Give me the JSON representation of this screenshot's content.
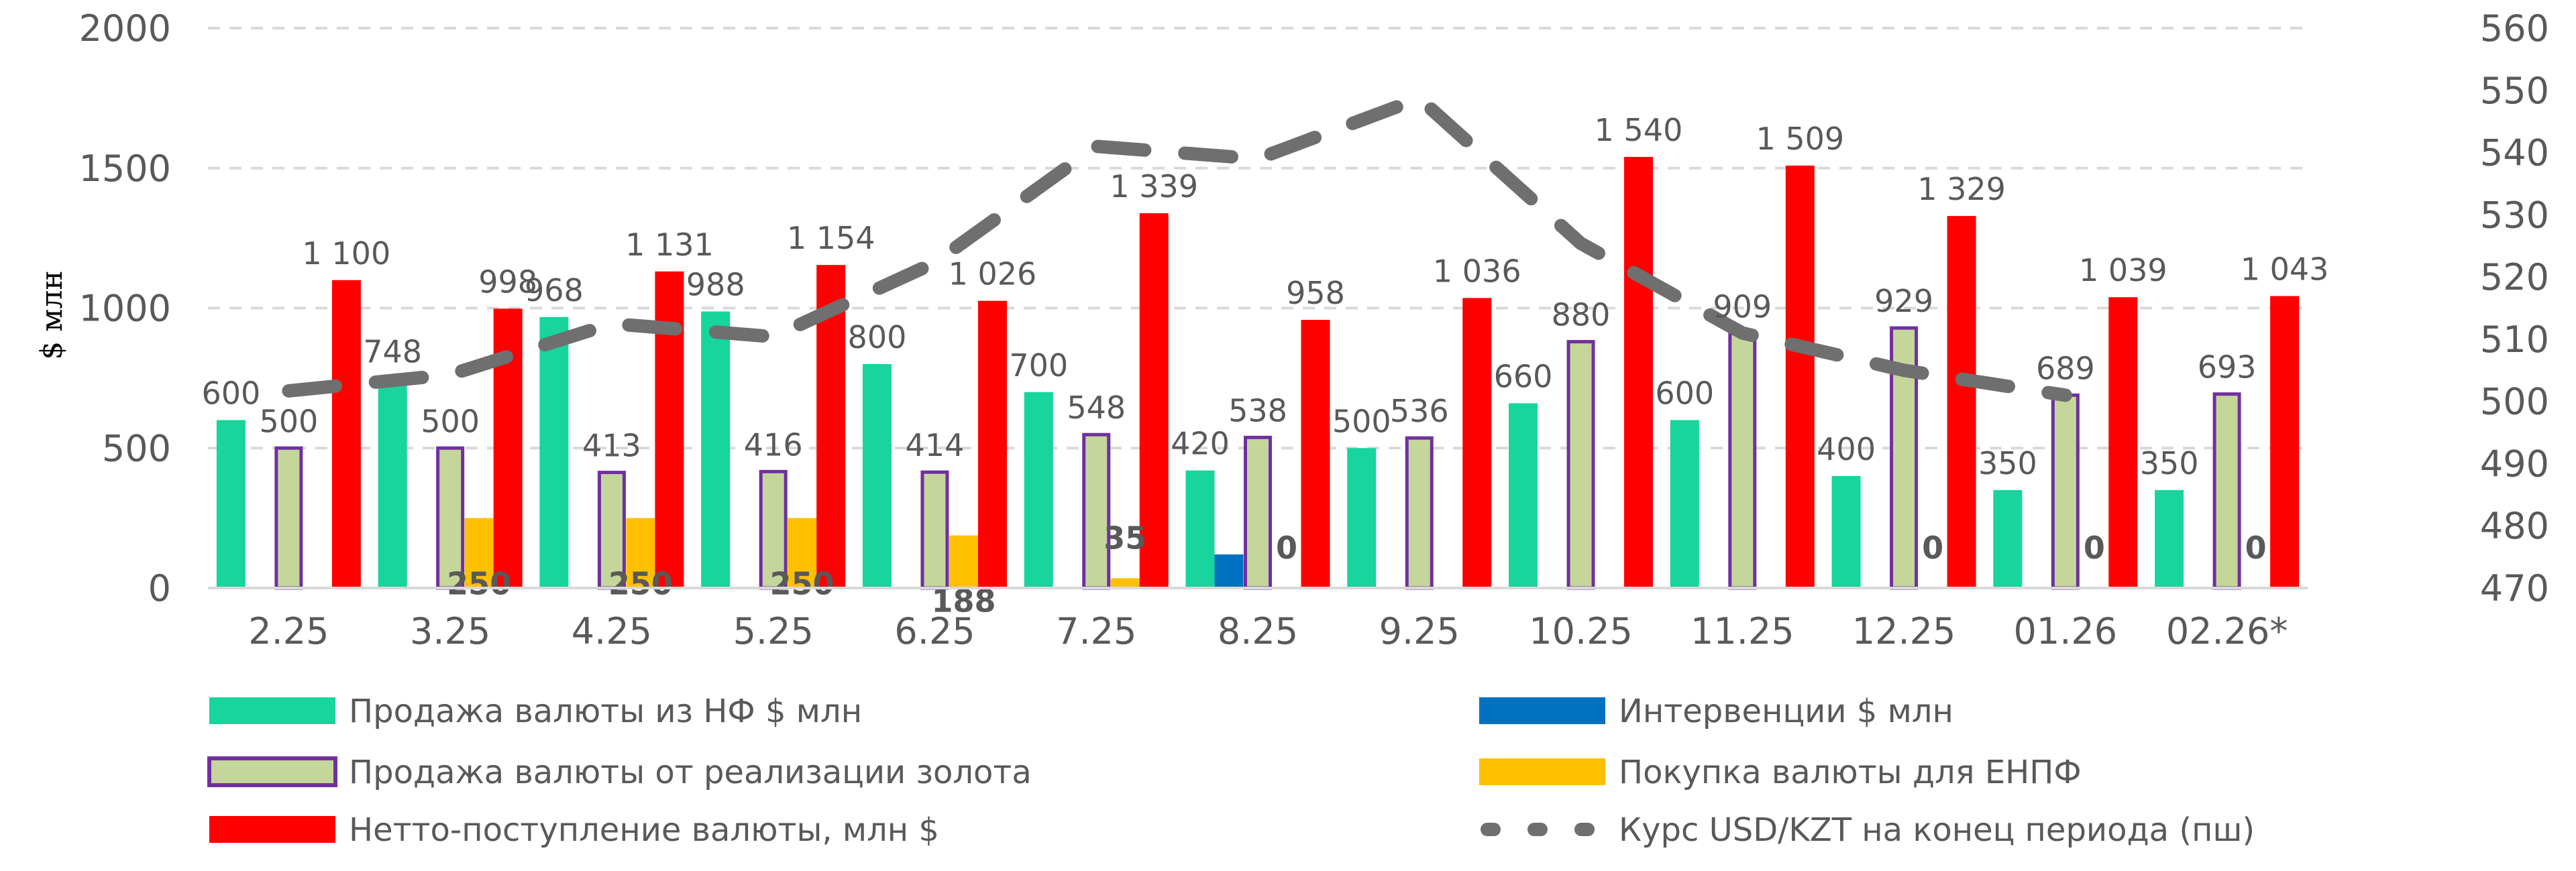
{
  "chart_data": {
    "type": "bar",
    "title": "",
    "xlabel": "",
    "ylabel": "$ млн",
    "ylim": [
      0,
      2000
    ],
    "y_ticks": [
      "0",
      "500",
      "1000",
      "1500",
      "2000"
    ],
    "y2lim": [
      470,
      560
    ],
    "y2_ticks": [
      "470",
      "480",
      "490",
      "500",
      "510",
      "520",
      "530",
      "540",
      "550",
      "560"
    ],
    "grid": true,
    "legend_position": "bottom",
    "categories": [
      "2.25",
      "3.25",
      "4.25",
      "5.25",
      "6.25",
      "7.25",
      "8.25",
      "9.25",
      "10.25",
      "11.25",
      "12.25",
      "01.26",
      "02.26*"
    ],
    "series": [
      {
        "name": "Продажа валюты из НФ $ млн",
        "type": "bar",
        "color": "#17d59c",
        "values": [
          600,
          748,
          968,
          988,
          800,
          700,
          420,
          500,
          660,
          600,
          400,
          350,
          350
        ],
        "labels": true
      },
      {
        "name": "Интервенции $ млн",
        "type": "bar",
        "color": "#0070c0",
        "values": [
          0,
          0,
          0,
          0,
          0,
          0,
          120,
          0,
          0,
          0,
          0,
          0,
          0
        ],
        "labels": false
      },
      {
        "name": "Продажа валюты от реализации золота",
        "type": "bar",
        "color": "#c5d69b",
        "border": "#7030a0",
        "values": [
          500,
          500,
          413,
          416,
          414,
          548,
          538,
          536,
          880,
          909,
          929,
          689,
          693
        ],
        "labels": true
      },
      {
        "name": "Покупка валюты для ЕНПФ",
        "type": "bar",
        "color": "#ffc000",
        "values": [
          null,
          250,
          250,
          250,
          188,
          35,
          0,
          null,
          null,
          null,
          0,
          0,
          0
        ],
        "labels": true,
        "label_bold": true
      },
      {
        "name": "Нетто-поступление валюты, млн $",
        "type": "bar",
        "color": "#ff0000",
        "values": [
          1100,
          998,
          1131,
          1154,
          1026,
          1339,
          958,
          1036,
          1540,
          1509,
          1329,
          1039,
          1043
        ],
        "labels": true
      },
      {
        "name": "Курс USD/KZT на конец периода (пш)",
        "type": "line",
        "axis": "secondary",
        "color": "#6f6f6f",
        "dashed": true,
        "values": [
          501.7,
          504.3,
          512.5,
          510.4,
          522.3,
          541,
          539,
          548.7,
          525.4,
          511,
          505,
          501,
          null
        ]
      }
    ]
  }
}
